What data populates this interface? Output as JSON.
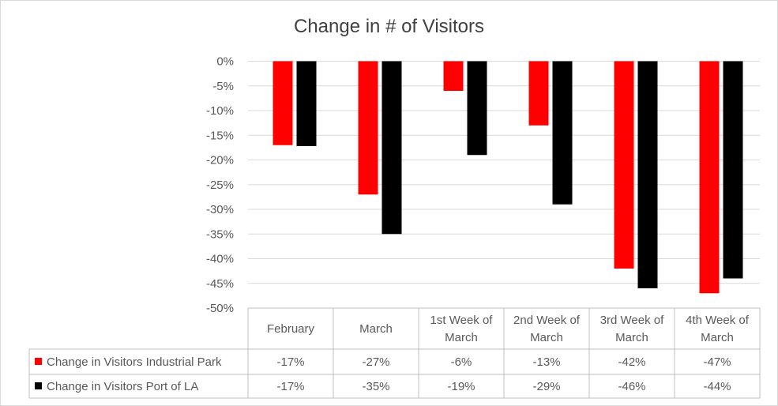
{
  "chart_data": {
    "type": "bar",
    "title": "Change in # of Visitors",
    "categories": [
      "February",
      "March",
      "1st Week of March",
      "2nd Week of March",
      "3rd Week of March",
      "4th Week of March"
    ],
    "category_lines": [
      [
        "February"
      ],
      [
        "March"
      ],
      [
        "1st Week of",
        "March"
      ],
      [
        "2nd Week of",
        "March"
      ],
      [
        "3rd Week of",
        "March"
      ],
      [
        "4th Week of",
        "March"
      ]
    ],
    "series": [
      {
        "name": "Change in Visitors Industrial Park",
        "color": "#ff0000",
        "values": [
          -17,
          -27,
          -6,
          -13,
          -42,
          -47
        ],
        "labels": [
          "-17%",
          "-27%",
          "-6%",
          "-13%",
          "-42%",
          "-47%"
        ]
      },
      {
        "name": "Change in Visitors Port of LA",
        "color": "#000000",
        "values": [
          -17.2,
          -35,
          -19,
          -29,
          -46,
          -44
        ],
        "labels": [
          "-17%",
          "-35%",
          "-19%",
          "-29%",
          "-46%",
          "-44%"
        ]
      }
    ],
    "ylim": [
      -50,
      0
    ],
    "yticks": [
      0,
      -5,
      -10,
      -15,
      -20,
      -25,
      -30,
      -35,
      -40,
      -45,
      -50
    ],
    "ytick_labels": [
      "0%",
      "-5%",
      "-10%",
      "-15%",
      "-20%",
      "-25%",
      "-30%",
      "-35%",
      "-40%",
      "-45%",
      "-50%"
    ],
    "grid": true,
    "legend": "data-table"
  }
}
